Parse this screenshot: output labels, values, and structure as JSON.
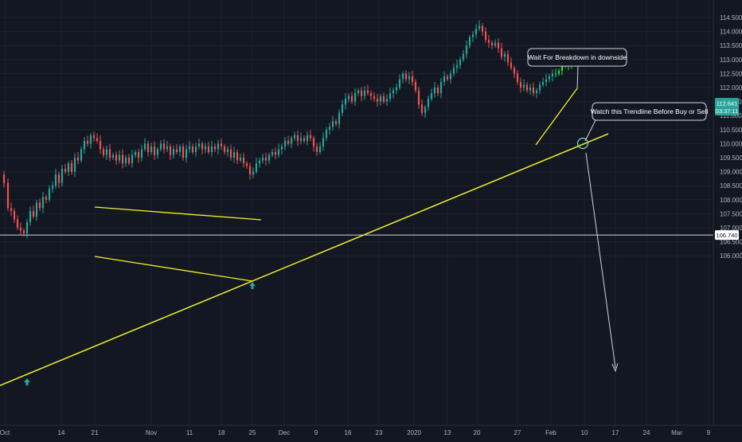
{
  "chart_data": {
    "type": "candlestick",
    "title": "",
    "xlabel": "",
    "ylabel": "",
    "ylim": [
      105.75,
      114.75
    ],
    "y_ticks": [
      "114.500",
      "114.000",
      "113.500",
      "113.000",
      "112.500",
      "112.000",
      "111.500",
      "111.000",
      "110.500",
      "110.000",
      "109.500",
      "109.000",
      "108.500",
      "108.000",
      "107.500",
      "107.000",
      "106.500",
      "106.000"
    ],
    "x_ticks": [
      "Oct",
      "14",
      "21",
      "Nov",
      "11",
      "18",
      "25",
      "Dec",
      "9",
      "16",
      "23",
      "2020",
      "13",
      "20",
      "27",
      "Feb",
      "10",
      "17",
      "24",
      "Mar",
      "9"
    ],
    "price_label": {
      "value": "112.641",
      "countdown": "03:37:11"
    },
    "support_label": "106.740",
    "annotations": [
      {
        "text": "Wait For Breakdown in downside"
      },
      {
        "text": "Watch this Trendline Before Buy or Sell"
      }
    ],
    "close_path": [
      [
        0,
        108.9
      ],
      [
        5,
        108.6
      ],
      [
        10,
        107.7
      ],
      [
        14,
        107.6
      ],
      [
        18,
        107.3
      ],
      [
        22,
        107.0
      ],
      [
        26,
        106.9
      ],
      [
        30,
        106.8
      ],
      [
        34,
        107.2
      ],
      [
        38,
        107.6
      ],
      [
        42,
        107.4
      ],
      [
        46,
        107.9
      ],
      [
        50,
        107.7
      ],
      [
        54,
        108.1
      ],
      [
        58,
        108.0
      ],
      [
        62,
        108.4
      ],
      [
        66,
        108.5
      ],
      [
        70,
        108.9
      ],
      [
        74,
        108.6
      ],
      [
        78,
        109.1
      ],
      [
        82,
        109.0
      ],
      [
        86,
        109.3
      ],
      [
        90,
        109.0
      ],
      [
        94,
        109.5
      ],
      [
        98,
        109.4
      ],
      [
        102,
        109.8
      ],
      [
        106,
        110.1
      ],
      [
        110,
        110.0
      ],
      [
        114,
        110.3
      ],
      [
        118,
        110.2
      ],
      [
        122,
        110.1
      ],
      [
        126,
        109.8
      ],
      [
        130,
        109.6
      ],
      [
        134,
        109.8
      ],
      [
        138,
        109.5
      ],
      [
        142,
        109.6
      ],
      [
        146,
        109.4
      ],
      [
        150,
        109.6
      ],
      [
        154,
        109.3
      ],
      [
        158,
        109.5
      ],
      [
        162,
        109.3
      ],
      [
        166,
        109.6
      ],
      [
        170,
        109.7
      ],
      [
        174,
        109.5
      ],
      [
        178,
        109.8
      ],
      [
        182,
        110.0
      ],
      [
        186,
        109.7
      ],
      [
        190,
        109.9
      ],
      [
        194,
        109.6
      ],
      [
        198,
        109.8
      ],
      [
        202,
        110.0
      ],
      [
        206,
        109.8
      ],
      [
        210,
        109.9
      ],
      [
        214,
        109.6
      ],
      [
        218,
        109.8
      ],
      [
        222,
        109.7
      ],
      [
        226,
        109.9
      ],
      [
        230,
        109.5
      ],
      [
        234,
        109.8
      ],
      [
        238,
        109.9
      ],
      [
        242,
        109.7
      ],
      [
        246,
        109.9
      ],
      [
        250,
        110.0
      ],
      [
        254,
        109.8
      ],
      [
        258,
        109.9
      ],
      [
        262,
        109.7
      ],
      [
        266,
        109.9
      ],
      [
        270,
        109.8
      ],
      [
        274,
        110.0
      ],
      [
        278,
        109.9
      ],
      [
        282,
        109.7
      ],
      [
        286,
        109.8
      ],
      [
        290,
        109.5
      ],
      [
        294,
        109.7
      ],
      [
        298,
        109.4
      ],
      [
        302,
        109.5
      ],
      [
        306,
        109.3
      ],
      [
        310,
        109.2
      ],
      [
        314,
        108.9
      ],
      [
        318,
        109.0
      ],
      [
        322,
        109.3
      ],
      [
        326,
        109.4
      ],
      [
        330,
        109.5
      ],
      [
        334,
        109.4
      ],
      [
        338,
        109.6
      ],
      [
        342,
        109.7
      ],
      [
        346,
        109.6
      ],
      [
        350,
        109.8
      ],
      [
        354,
        109.9
      ],
      [
        358,
        110.1
      ],
      [
        362,
        110.0
      ],
      [
        366,
        110.2
      ],
      [
        370,
        110.3
      ],
      [
        374,
        110.1
      ],
      [
        378,
        110.2
      ],
      [
        382,
        110.1
      ],
      [
        386,
        110.3
      ],
      [
        390,
        110.2
      ],
      [
        394,
        109.9
      ],
      [
        398,
        109.7
      ],
      [
        402,
        109.9
      ],
      [
        406,
        110.2
      ],
      [
        410,
        110.5
      ],
      [
        414,
        110.6
      ],
      [
        418,
        110.8
      ],
      [
        422,
        110.7
      ],
      [
        426,
        111.1
      ],
      [
        430,
        111.4
      ],
      [
        434,
        111.6
      ],
      [
        438,
        111.7
      ],
      [
        442,
        111.5
      ],
      [
        446,
        111.8
      ],
      [
        450,
        111.9
      ],
      [
        454,
        111.7
      ],
      [
        458,
        111.9
      ],
      [
        462,
        111.8
      ],
      [
        466,
        111.7
      ],
      [
        470,
        111.6
      ],
      [
        474,
        111.5
      ],
      [
        478,
        111.7
      ],
      [
        482,
        111.5
      ],
      [
        486,
        111.6
      ],
      [
        490,
        111.8
      ],
      [
        494,
        111.9
      ],
      [
        498,
        112.0
      ],
      [
        502,
        112.3
      ],
      [
        506,
        112.5
      ],
      [
        510,
        112.3
      ],
      [
        514,
        112.4
      ],
      [
        518,
        112.2
      ],
      [
        522,
        111.9
      ],
      [
        526,
        111.4
      ],
      [
        530,
        111.1
      ],
      [
        534,
        111.3
      ],
      [
        538,
        111.6
      ],
      [
        542,
        111.8
      ],
      [
        546,
        112.0
      ],
      [
        550,
        111.8
      ],
      [
        554,
        112.2
      ],
      [
        558,
        112.4
      ],
      [
        562,
        112.3
      ],
      [
        566,
        112.5
      ],
      [
        570,
        112.7
      ],
      [
        574,
        112.8
      ],
      [
        578,
        113.0
      ],
      [
        582,
        113.2
      ],
      [
        586,
        113.5
      ],
      [
        590,
        113.8
      ],
      [
        594,
        113.9
      ],
      [
        598,
        114.1
      ],
      [
        602,
        114.2
      ],
      [
        606,
        114.0
      ],
      [
        610,
        113.7
      ],
      [
        614,
        113.6
      ],
      [
        618,
        113.5
      ],
      [
        622,
        113.6
      ],
      [
        626,
        113.4
      ],
      [
        630,
        113.1
      ],
      [
        634,
        113.2
      ],
      [
        638,
        112.9
      ],
      [
        642,
        112.7
      ],
      [
        646,
        112.5
      ],
      [
        650,
        112.2
      ],
      [
        654,
        112.0
      ],
      [
        658,
        112.1
      ],
      [
        662,
        111.9
      ],
      [
        666,
        112.0
      ],
      [
        670,
        111.8
      ],
      [
        674,
        111.9
      ],
      [
        678,
        112.1
      ],
      [
        682,
        112.2
      ],
      [
        686,
        112.3
      ],
      [
        690,
        112.4
      ],
      [
        694,
        112.5
      ],
      [
        698,
        112.5
      ],
      [
        702,
        112.6
      ],
      [
        706,
        112.8
      ],
      [
        710,
        112.9
      ],
      [
        714,
        112.8
      ],
      [
        718,
        112.9
      ]
    ]
  }
}
